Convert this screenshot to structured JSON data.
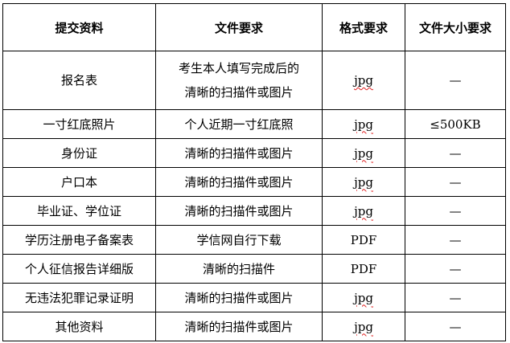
{
  "table": {
    "headers": [
      "提交资料",
      "文件要求",
      "格式要求",
      "文件大小要求"
    ],
    "rows": [
      {
        "material": "报名表",
        "requirement": "考生本人填写完成后的清晰的扫描件或图片",
        "requirement_line1": "考生本人填写完成后的",
        "requirement_line2": "清晰的扫描件或图片",
        "format": "jpg",
        "size": "—"
      },
      {
        "material": "一寸红底照片",
        "requirement": "个人近期一寸红底照",
        "format": "jpg",
        "size": "≤500KB"
      },
      {
        "material": "身份证",
        "requirement": "清晰的扫描件或图片",
        "format": "jpg",
        "size": "—"
      },
      {
        "material": "户口本",
        "requirement": "清晰的扫描件或图片",
        "format": "jpg",
        "size": "—"
      },
      {
        "material": "毕业证、学位证",
        "requirement": "清晰的扫描件或图片",
        "format": "jpg",
        "size": "—"
      },
      {
        "material": "学历注册电子备案表",
        "requirement": "学信网自行下载",
        "format": "PDF",
        "size": "—"
      },
      {
        "material": "个人征信报告详细版",
        "requirement": "清晰的扫描件",
        "format": "PDF",
        "size": "—"
      },
      {
        "material": "无违法犯罪记录证明",
        "requirement": "清晰的扫描件或图片",
        "format": "jpg",
        "size": "—"
      },
      {
        "material": "其他资料",
        "requirement": "清晰的扫描件或图片",
        "format": "jpg",
        "size": "—"
      }
    ]
  },
  "colors": {
    "border": "#000000",
    "spellcheck_underline": "#e02020"
  }
}
